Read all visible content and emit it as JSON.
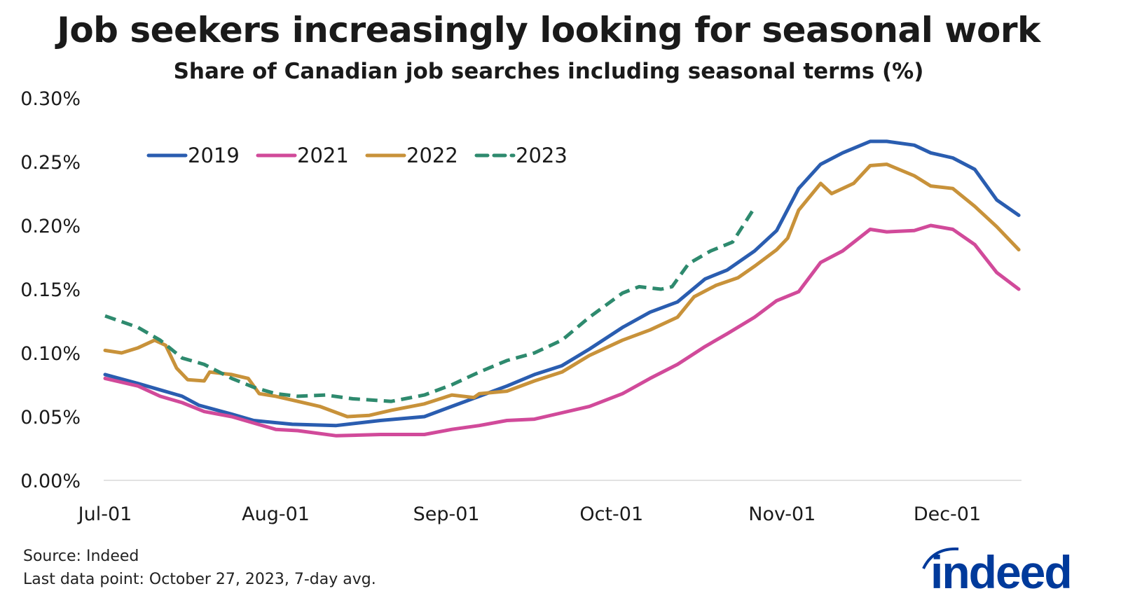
{
  "chart_data": {
    "type": "line",
    "title": "Job seekers increasingly looking for seasonal work",
    "subtitle": "Share of Canadian job searches including seasonal terms (%)",
    "xlabel": "",
    "ylabel": "",
    "ylim": [
      0,
      0.3
    ],
    "xlim": [
      "Jul-01",
      "Dec-14"
    ],
    "yticks": [
      "0.00%",
      "0.05%",
      "0.10%",
      "0.15%",
      "0.20%",
      "0.25%",
      "0.30%"
    ],
    "xticks": [
      "Jul-01",
      "Aug-01",
      "Sep-01",
      "Oct-01",
      "Nov-01",
      "Dec-01"
    ],
    "grid": false,
    "legend_position": "top-left",
    "series": [
      {
        "name": "2019",
        "color": "#2a5db0",
        "dashed": false,
        "x": [
          "Jul-01",
          "Jul-07",
          "Jul-11",
          "Jul-15",
          "Jul-18",
          "Jul-24",
          "Jul-28",
          "Aug-04",
          "Aug-12",
          "Aug-20",
          "Aug-28",
          "Sep-02",
          "Sep-07",
          "Sep-12",
          "Sep-17",
          "Sep-22",
          "Sep-27",
          "Oct-03",
          "Oct-08",
          "Oct-13",
          "Oct-18",
          "Oct-22",
          "Oct-27",
          "Oct-31",
          "Nov-04",
          "Nov-08",
          "Nov-12",
          "Nov-17",
          "Nov-20",
          "Nov-25",
          "Nov-28",
          "Dec-02",
          "Dec-06",
          "Dec-10",
          "Dec-14"
        ],
        "values": [
          0.083,
          0.076,
          0.071,
          0.066,
          0.059,
          0.052,
          0.047,
          0.044,
          0.043,
          0.047,
          0.05,
          0.058,
          0.066,
          0.074,
          0.083,
          0.09,
          0.103,
          0.12,
          0.132,
          0.14,
          0.158,
          0.165,
          0.18,
          0.196,
          0.229,
          0.248,
          0.257,
          0.266,
          0.266,
          0.263,
          0.257,
          0.253,
          0.244,
          0.22,
          0.208
        ]
      },
      {
        "name": "2021",
        "color": "#d14a9a",
        "dashed": false,
        "x": [
          "Jul-01",
          "Jul-07",
          "Jul-11",
          "Jul-15",
          "Jul-19",
          "Jul-24",
          "Jul-28",
          "Aug-01",
          "Aug-05",
          "Aug-12",
          "Aug-20",
          "Aug-28",
          "Sep-02",
          "Sep-07",
          "Sep-12",
          "Sep-17",
          "Sep-22",
          "Sep-27",
          "Oct-03",
          "Oct-08",
          "Oct-13",
          "Oct-18",
          "Oct-22",
          "Oct-27",
          "Oct-31",
          "Nov-04",
          "Nov-08",
          "Nov-12",
          "Nov-17",
          "Nov-20",
          "Nov-25",
          "Nov-28",
          "Dec-02",
          "Dec-06",
          "Dec-10",
          "Dec-14"
        ],
        "values": [
          0.08,
          0.074,
          0.066,
          0.061,
          0.054,
          0.05,
          0.045,
          0.04,
          0.039,
          0.035,
          0.036,
          0.036,
          0.04,
          0.043,
          0.047,
          0.048,
          0.053,
          0.058,
          0.068,
          0.08,
          0.091,
          0.105,
          0.115,
          0.128,
          0.141,
          0.148,
          0.171,
          0.18,
          0.197,
          0.195,
          0.196,
          0.2,
          0.197,
          0.185,
          0.163,
          0.15
        ]
      },
      {
        "name": "2022",
        "color": "#c8923a",
        "dashed": false,
        "x": [
          "Jul-01",
          "Jul-04",
          "Jul-07",
          "Jul-10",
          "Jul-12",
          "Jul-14",
          "Jul-16",
          "Jul-19",
          "Jul-20",
          "Jul-24",
          "Jul-27",
          "Jul-29",
          "Aug-01",
          "Aug-05",
          "Aug-09",
          "Aug-14",
          "Aug-18",
          "Aug-22",
          "Aug-28",
          "Sep-02",
          "Sep-06",
          "Sep-07",
          "Sep-12",
          "Sep-17",
          "Sep-22",
          "Sep-27",
          "Oct-03",
          "Oct-08",
          "Oct-13",
          "Oct-16",
          "Oct-20",
          "Oct-24",
          "Oct-27",
          "Oct-31",
          "Nov-02",
          "Nov-04",
          "Nov-08",
          "Nov-10",
          "Nov-14",
          "Nov-17",
          "Nov-20",
          "Nov-25",
          "Nov-28",
          "Dec-02",
          "Dec-06",
          "Dec-10",
          "Dec-14"
        ],
        "values": [
          0.102,
          0.1,
          0.104,
          0.11,
          0.106,
          0.088,
          0.079,
          0.078,
          0.085,
          0.083,
          0.08,
          0.068,
          0.066,
          0.062,
          0.058,
          0.05,
          0.051,
          0.055,
          0.06,
          0.067,
          0.065,
          0.068,
          0.07,
          0.078,
          0.085,
          0.098,
          0.11,
          0.118,
          0.128,
          0.144,
          0.153,
          0.159,
          0.168,
          0.181,
          0.19,
          0.212,
          0.233,
          0.225,
          0.233,
          0.247,
          0.248,
          0.239,
          0.231,
          0.229,
          0.215,
          0.199,
          0.181
        ]
      },
      {
        "name": "2023",
        "color": "#2e8a6e",
        "dashed": true,
        "x": [
          "Jul-01",
          "Jul-07",
          "Jul-11",
          "Jul-15",
          "Jul-19",
          "Jul-24",
          "Jul-28",
          "Aug-01",
          "Aug-05",
          "Aug-10",
          "Aug-15",
          "Aug-22",
          "Aug-28",
          "Sep-02",
          "Sep-07",
          "Sep-12",
          "Sep-17",
          "Sep-22",
          "Sep-27",
          "Oct-03",
          "Oct-06",
          "Oct-10",
          "Oct-12",
          "Oct-15",
          "Oct-19",
          "Oct-23",
          "Oct-27"
        ],
        "values": [
          0.129,
          0.12,
          0.11,
          0.096,
          0.091,
          0.08,
          0.073,
          0.068,
          0.066,
          0.067,
          0.064,
          0.062,
          0.067,
          0.075,
          0.085,
          0.094,
          0.1,
          0.11,
          0.128,
          0.147,
          0.152,
          0.15,
          0.152,
          0.17,
          0.18,
          0.187,
          0.214
        ]
      }
    ]
  },
  "footer": {
    "source": "Source: Indeed",
    "note": "Last data point: October 27, 2023, 7-day avg.",
    "logo_text": "indeed",
    "logo_color": "#003a9b"
  }
}
